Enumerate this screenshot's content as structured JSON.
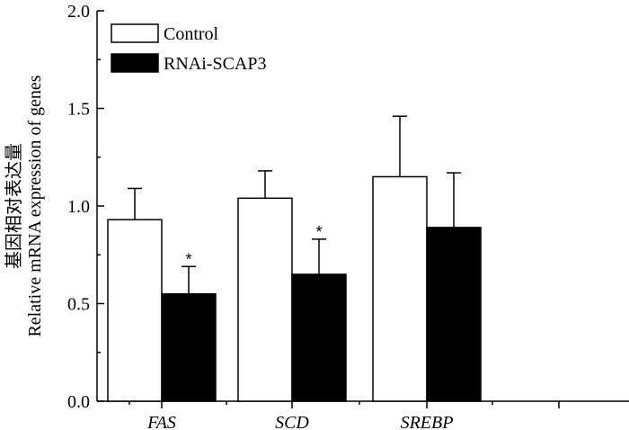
{
  "chart_data": {
    "type": "bar",
    "title": "",
    "xlabel": "",
    "ylabel_cn": "基因相对表达量",
    "ylabel_en": "Relative mRNA expression of genes",
    "categories": [
      "FAS",
      "SCD",
      "SREBP"
    ],
    "series": [
      {
        "name": "Control",
        "color": "#ffffff",
        "values": [
          0.93,
          1.04,
          1.15
        ],
        "errors": [
          0.16,
          0.14,
          0.31
        ],
        "significance": [
          "",
          "",
          ""
        ]
      },
      {
        "name": "RNAi-SCAP3",
        "color": "#000000",
        "values": [
          0.55,
          0.65,
          0.89
        ],
        "errors": [
          0.14,
          0.18,
          0.28
        ],
        "significance": [
          "*",
          "*",
          ""
        ]
      }
    ],
    "ylim": [
      0.0,
      2.0
    ],
    "yticks": [
      "0.0",
      "0.5",
      "1.0",
      "1.5",
      "2.0"
    ],
    "legend_position": "top-left",
    "grid": false
  }
}
